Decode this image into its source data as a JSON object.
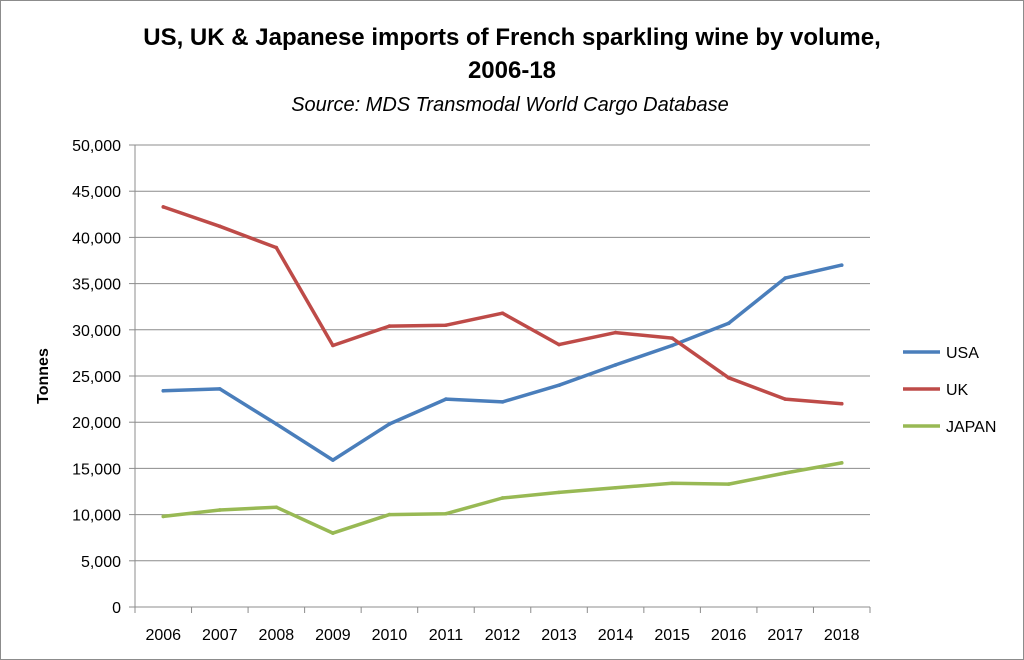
{
  "chart_data": {
    "type": "line",
    "title_line1": "US, UK & Japanese imports of French sparkling wine by volume,",
    "title_line2": "2006-18",
    "subtitle": "Source:  MDS Transmodal World Cargo Database",
    "xlabel": "",
    "ylabel": "Tonnes",
    "categories": [
      "2006",
      "2007",
      "2008",
      "2009",
      "2010",
      "2011",
      "2012",
      "2013",
      "2014",
      "2015",
      "2016",
      "2017",
      "2018"
    ],
    "ylim": [
      0,
      50000
    ],
    "yticks": [
      0,
      5000,
      10000,
      15000,
      20000,
      25000,
      30000,
      35000,
      40000,
      45000,
      50000
    ],
    "ytick_labels": [
      "0",
      "5,000",
      "10,000",
      "15,000",
      "20,000",
      "25,000",
      "30,000",
      "35,000",
      "40,000",
      "45,000",
      "50,000"
    ],
    "grid": "horizontal",
    "legend_position": "right",
    "series": [
      {
        "name": "USA",
        "color": "#4a7ebb",
        "values": [
          23400,
          23600,
          19800,
          15900,
          19800,
          22500,
          22200,
          24000,
          26200,
          28300,
          30700,
          35600,
          37000
        ]
      },
      {
        "name": "UK",
        "color": "#be4b48",
        "values": [
          43300,
          41200,
          38900,
          28300,
          30400,
          30500,
          31800,
          28400,
          29700,
          29100,
          24800,
          22500,
          22000
        ]
      },
      {
        "name": "JAPAN",
        "color": "#98b954",
        "values": [
          9800,
          10500,
          10800,
          8000,
          10000,
          10100,
          11800,
          12400,
          12900,
          13400,
          13300,
          14500,
          15600
        ]
      }
    ]
  }
}
